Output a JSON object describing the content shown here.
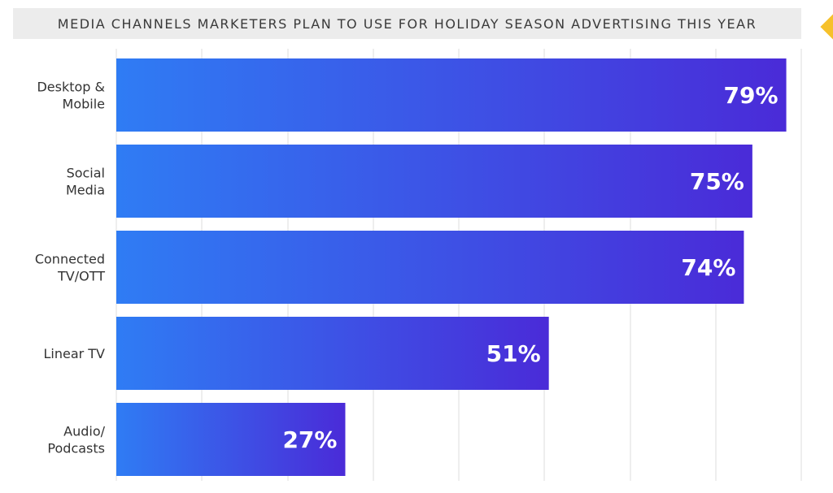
{
  "chart_data": {
    "type": "bar",
    "orientation": "horizontal",
    "title": "MEDIA CHANNELS MARKETERS PLAN TO USE FOR HOLIDAY SEASON ADVERTISING THIS YEAR",
    "categories": [
      [
        "Desktop &",
        "Mobile"
      ],
      [
        "Social",
        "Media"
      ],
      [
        "Connected",
        "TV/OTT"
      ],
      [
        "Linear TV"
      ],
      [
        "Audio/",
        "Podcasts"
      ]
    ],
    "values": [
      79,
      75,
      74,
      51,
      27
    ],
    "value_labels": [
      "79%",
      "75%",
      "74%",
      "51%",
      "27%"
    ],
    "xlim": [
      0,
      80
    ],
    "grid": true,
    "colors": {
      "bar_start": "#2f7cf4",
      "bar_end": "#4a2bd8",
      "grid": "#dddddd",
      "title_bg": "#ececec",
      "accent": "#f6c12b"
    }
  }
}
